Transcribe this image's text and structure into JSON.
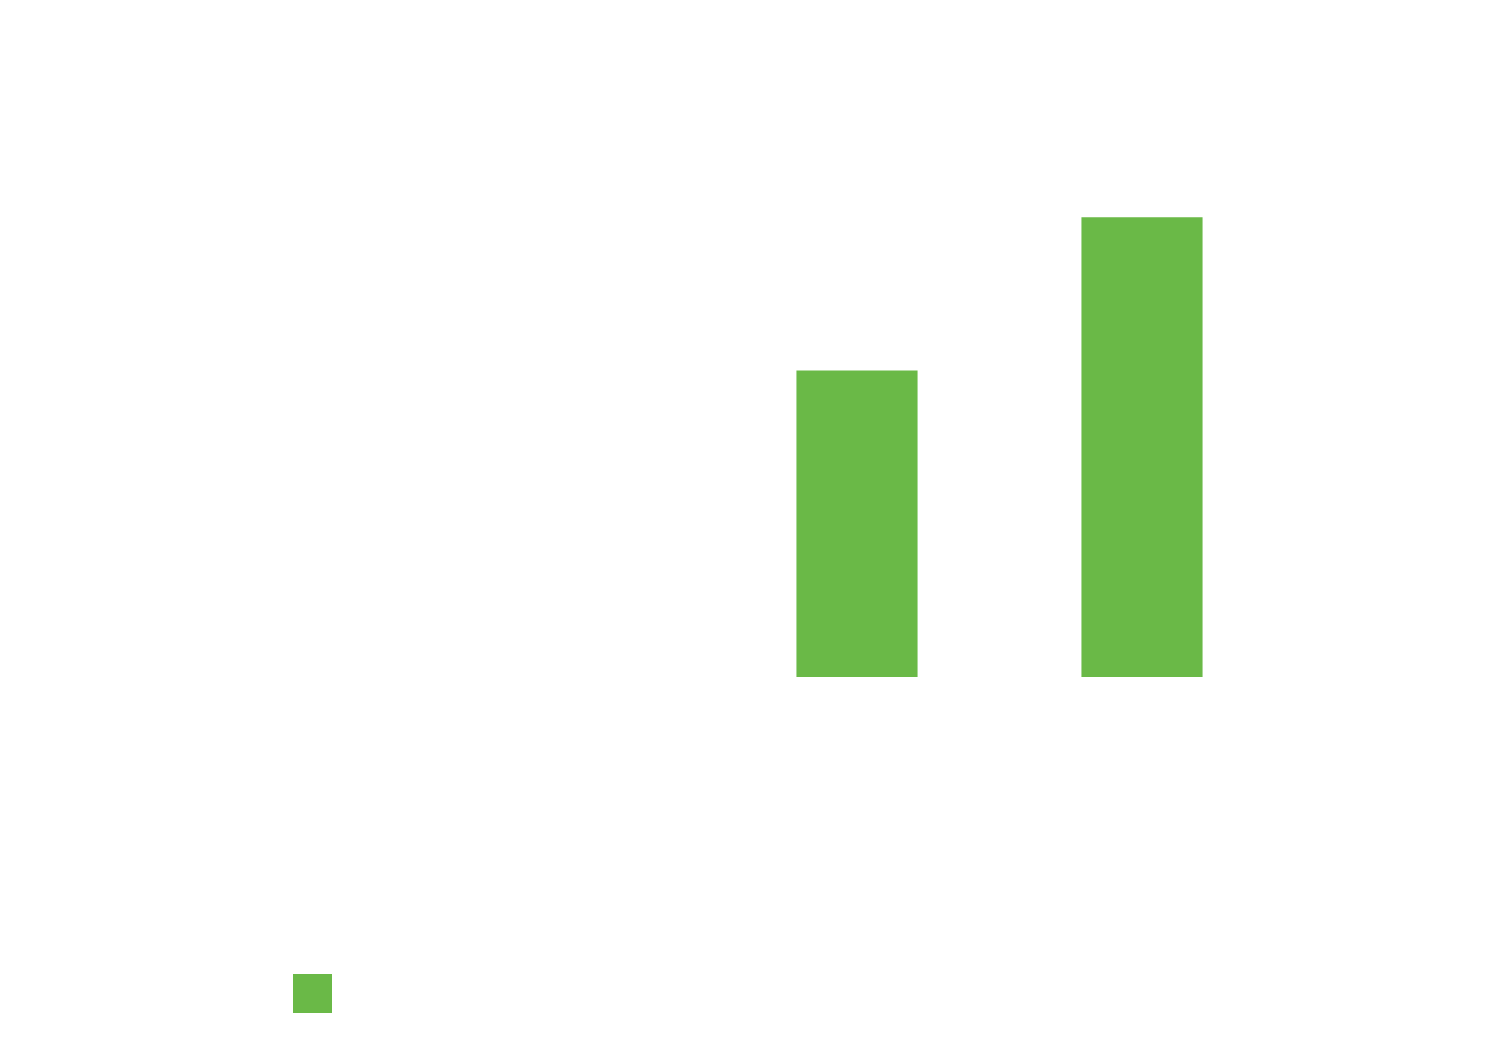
{
  "chart_data": {
    "type": "bar",
    "categories": [
      null,
      null,
      null,
      null
    ],
    "series": [
      {
        "color": "#6ab947",
        "values": [
          null,
          null,
          2,
          3
        ]
      }
    ],
    "ylim": [
      0,
      4
    ],
    "legend": "bottom-left"
  }
}
